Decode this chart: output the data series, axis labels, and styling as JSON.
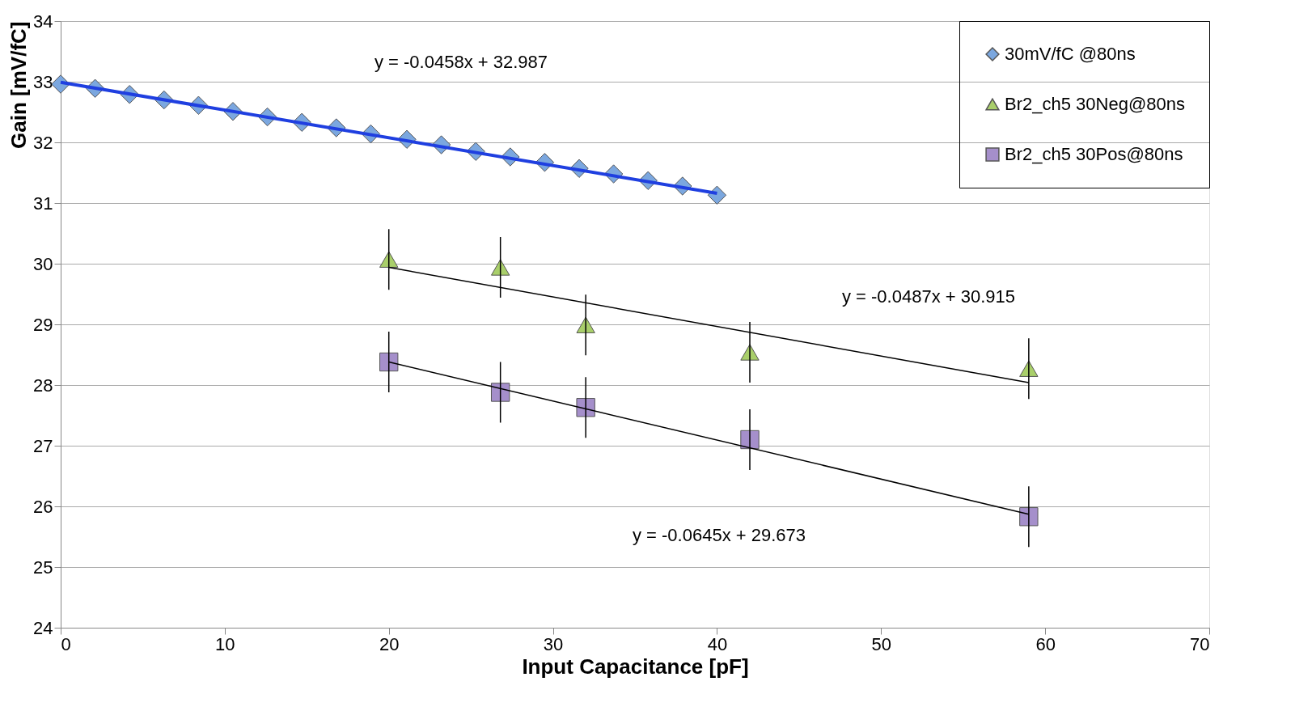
{
  "chart_data": {
    "type": "scatter",
    "xlabel": "Input Capacitance [pF]",
    "ylabel": "Gain [mV/fC]",
    "xlim": [
      0,
      70
    ],
    "xticks": [
      0,
      10,
      20,
      30,
      40,
      50,
      60,
      70
    ],
    "ylim": [
      24,
      34
    ],
    "yticks": [
      24,
      25,
      26,
      27,
      28,
      29,
      30,
      31,
      32,
      33,
      34
    ],
    "grid": "y",
    "legend": "top right",
    "series": [
      {
        "name": "30mV/fC @80ns",
        "color": "#7ba7df",
        "marker": "diamond",
        "x": [
          0,
          2.1,
          4.2,
          6.3,
          8.4,
          10.5,
          12.6,
          14.7,
          16.8,
          18.9,
          21.1,
          23.2,
          25.3,
          27.4,
          29.5,
          31.6,
          33.7,
          35.8,
          37.9,
          40
        ],
        "values": [
          32.96,
          32.89,
          32.79,
          32.7,
          32.61,
          32.51,
          32.42,
          32.33,
          32.24,
          32.14,
          32.05,
          31.96,
          31.85,
          31.76,
          31.67,
          31.57,
          31.48,
          31.37,
          31.28,
          31.13
        ]
      },
      {
        "name": "Br2_ch5 30Neg@80ns",
        "color": "#a9cf6a",
        "marker": "triangle",
        "x": [
          20,
          26.8,
          32,
          42,
          59
        ],
        "values": [
          30.07,
          29.94,
          28.99,
          28.54,
          28.27
        ],
        "errors": [
          0.5,
          0.5,
          0.5,
          0.5,
          0.5
        ]
      },
      {
        "name": "Br2_ch5 30Pos@80ns",
        "color": "#a58fcb",
        "marker": "square",
        "x": [
          20,
          26.8,
          32,
          42,
          59
        ],
        "values": [
          28.38,
          27.88,
          27.63,
          27.1,
          25.83
        ],
        "errors": [
          0.5,
          0.5,
          0.5,
          0.5,
          0.5
        ]
      },
      {
        "type": "line",
        "color": "#1f3fe0",
        "x": [
          0,
          40
        ],
        "values": [
          32.99,
          31.16
        ]
      },
      {
        "type": "line",
        "color": "#000000",
        "x": [
          20,
          59
        ],
        "values": [
          29.94,
          28.04
        ]
      },
      {
        "type": "line",
        "color": "#000000",
        "x": [
          20,
          59
        ],
        "values": [
          28.38,
          25.87
        ]
      }
    ],
    "annotations": [
      "y = -0.0458x + 32.987",
      "y = -0.0487x + 30.915",
      "y = -0.0645x + 29.673"
    ]
  }
}
